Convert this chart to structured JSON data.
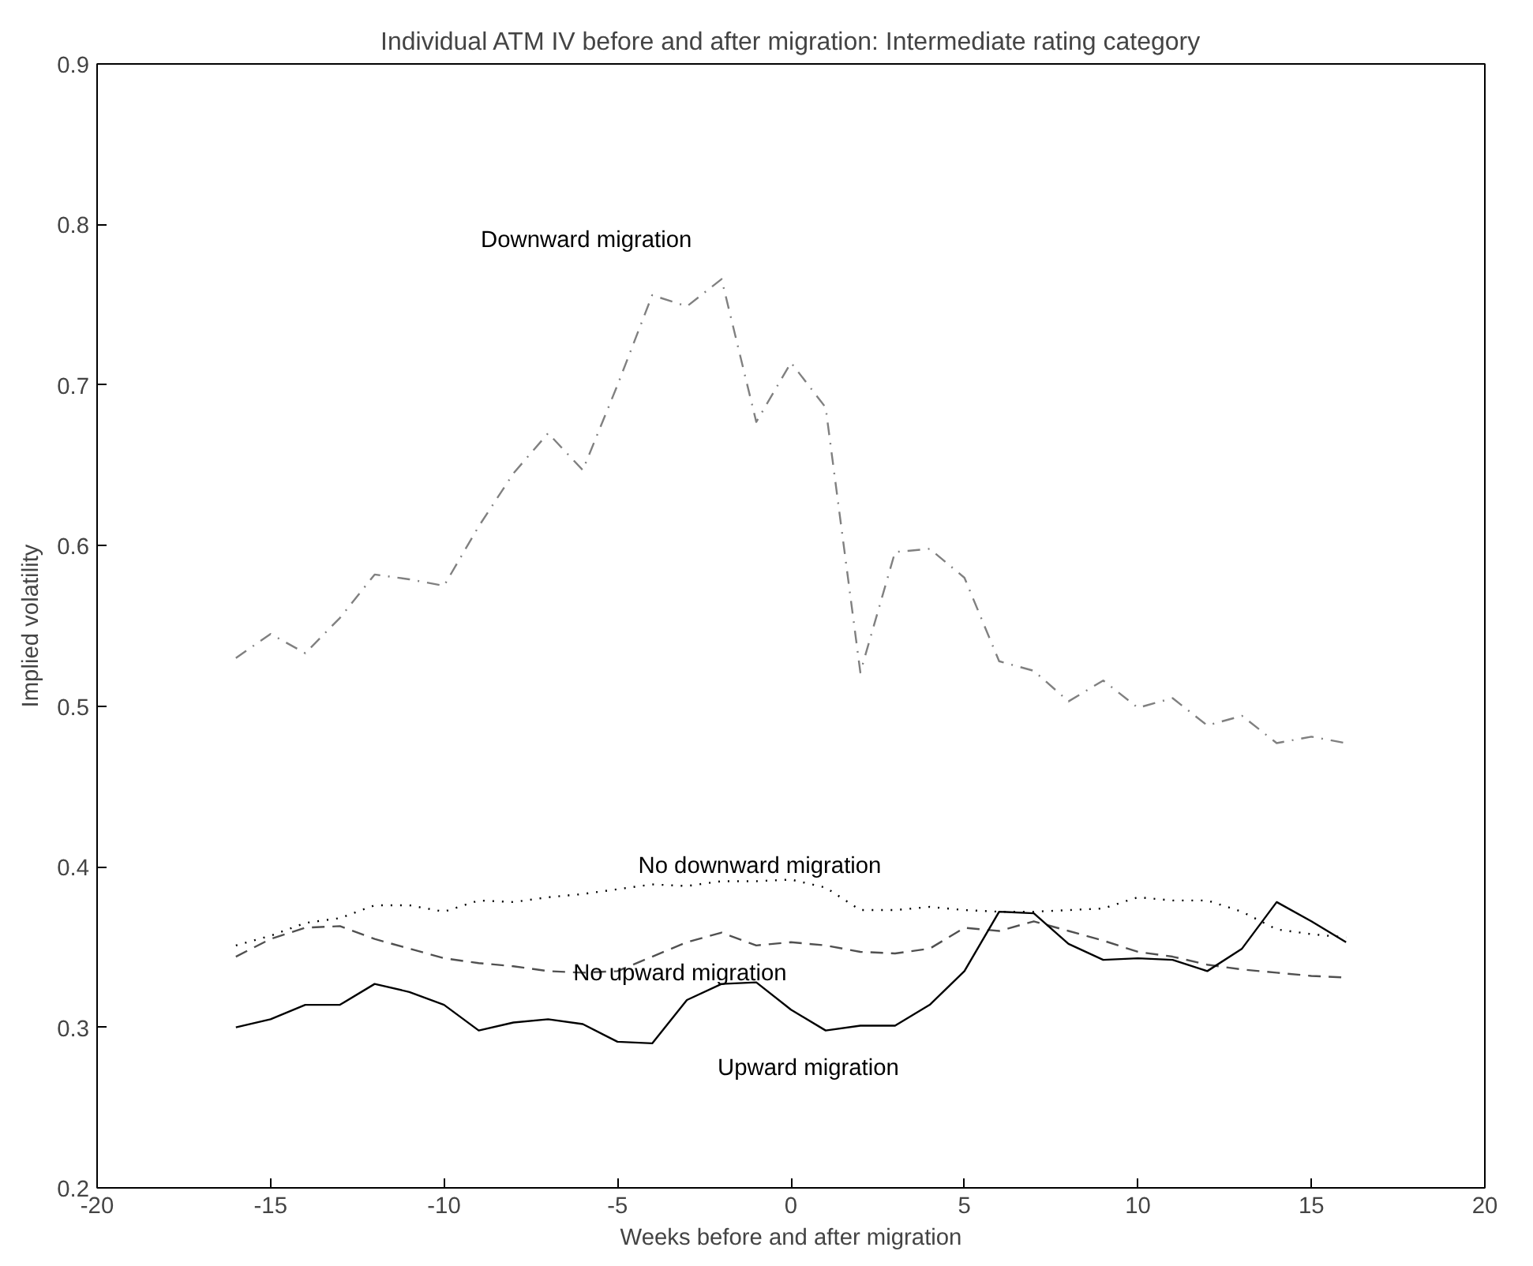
{
  "chart_data": {
    "type": "line",
    "title": "Individual ATM IV before and after migration: Intermediate rating category",
    "xlabel": "Weeks before and after migration",
    "ylabel": "Implied volatility",
    "x": [
      -16,
      -15,
      -14,
      -13,
      -12,
      -11,
      -10,
      -9,
      -8,
      -7,
      -6,
      -5,
      -4,
      -3,
      -2,
      -1,
      0,
      1,
      2,
      3,
      4,
      5,
      6,
      7,
      8,
      9,
      10,
      11,
      12,
      13,
      14,
      15,
      16
    ],
    "series": [
      {
        "name": "Downward migration",
        "color": "#808080",
        "line_style": "dashdot",
        "values": [
          0.53,
          0.545,
          0.533,
          0.555,
          0.582,
          0.579,
          0.575,
          0.612,
          0.645,
          0.67,
          0.647,
          0.7,
          0.756,
          0.749,
          0.766,
          0.677,
          0.714,
          0.686,
          0.521,
          0.596,
          0.598,
          0.58,
          0.528,
          0.522,
          0.503,
          0.516,
          0.499,
          0.505,
          0.488,
          0.494,
          0.477,
          0.481,
          0.477
        ]
      },
      {
        "name": "No downward migration",
        "color": "#000000",
        "line_style": "dotted",
        "values": [
          0.351,
          0.357,
          0.365,
          0.368,
          0.376,
          0.376,
          0.372,
          0.379,
          0.378,
          0.381,
          0.383,
          0.386,
          0.389,
          0.388,
          0.391,
          0.391,
          0.392,
          0.387,
          0.373,
          0.373,
          0.375,
          0.373,
          0.372,
          0.372,
          0.373,
          0.374,
          0.381,
          0.379,
          0.379,
          0.372,
          0.361,
          0.358,
          0.356
        ]
      },
      {
        "name": "No upward migration",
        "color": "#505050",
        "line_style": "dashed",
        "values": [
          0.344,
          0.355,
          0.362,
          0.363,
          0.355,
          0.349,
          0.343,
          0.34,
          0.338,
          0.335,
          0.334,
          0.335,
          0.344,
          0.353,
          0.359,
          0.351,
          0.353,
          0.351,
          0.347,
          0.346,
          0.349,
          0.362,
          0.36,
          0.366,
          0.36,
          0.354,
          0.347,
          0.344,
          0.339,
          0.336,
          0.334,
          0.332,
          0.331
        ]
      },
      {
        "name": "Upward migration",
        "color": "#000000",
        "line_style": "solid",
        "values": [
          0.3,
          0.305,
          0.314,
          0.314,
          0.327,
          0.322,
          0.314,
          0.298,
          0.303,
          0.305,
          0.302,
          0.291,
          0.29,
          0.317,
          0.327,
          0.328,
          0.311,
          0.298,
          0.301,
          0.301,
          0.314,
          0.335,
          0.372,
          0.371,
          0.352,
          0.342,
          0.343,
          0.342,
          0.335,
          0.349,
          0.378,
          0.366,
          0.353
        ]
      }
    ],
    "xlim": [
      -20,
      20
    ],
    "xticks": [
      -20,
      -15,
      -10,
      -5,
      0,
      5,
      10,
      15,
      20
    ],
    "ylim": [
      0.2,
      0.9
    ],
    "yticks": [
      0.2,
      0.3,
      0.4,
      0.5,
      0.6,
      0.7,
      0.8,
      0.9
    ],
    "grid": false,
    "marker": "none"
  }
}
